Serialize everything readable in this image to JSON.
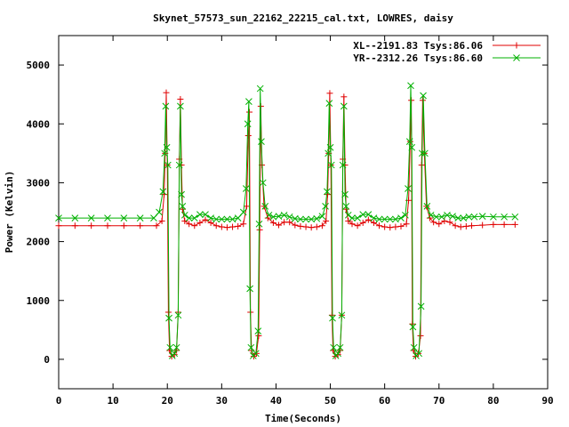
{
  "chart_data": {
    "type": "line",
    "title": "Skynet_57573_sun_22162_22215_cal.txt, LOWRES, daisy",
    "xlabel": "Time(Seconds)",
    "ylabel": "Power (Kelvin)",
    "xlim": [
      0,
      90
    ],
    "ylim": [
      -500,
      5500
    ],
    "xticks": [
      "0",
      "10",
      "20",
      "30",
      "40",
      "50",
      "60",
      "70",
      "80",
      "90"
    ],
    "yticks": [
      "0",
      "1000",
      "2000",
      "3000",
      "4000",
      "5000"
    ],
    "legend_position": "top-right",
    "grid": false,
    "series": [
      {
        "name": "XL--2191.83 Tsys:86.06",
        "color": "#e00000",
        "marker": "plus",
        "points": [
          [
            0,
            2270
          ],
          [
            3,
            2270
          ],
          [
            6,
            2270
          ],
          [
            9,
            2270
          ],
          [
            12,
            2270
          ],
          [
            15,
            2270
          ],
          [
            18,
            2270
          ],
          [
            19.0,
            2350
          ],
          [
            19.4,
            2800
          ],
          [
            19.6,
            3500
          ],
          [
            19.8,
            4530
          ],
          [
            20.0,
            3300
          ],
          [
            20.2,
            800
          ],
          [
            20.4,
            150
          ],
          [
            20.8,
            50
          ],
          [
            21.3,
            80
          ],
          [
            21.7,
            150
          ],
          [
            22.0,
            800
          ],
          [
            22.2,
            3400
          ],
          [
            22.4,
            4420
          ],
          [
            22.6,
            3300
          ],
          [
            22.8,
            2550
          ],
          [
            23.2,
            2350
          ],
          [
            24.0,
            2300
          ],
          [
            25.0,
            2270
          ],
          [
            26.0,
            2320
          ],
          [
            27.0,
            2370
          ],
          [
            28.0,
            2320
          ],
          [
            29.0,
            2270
          ],
          [
            30.0,
            2250
          ],
          [
            31.0,
            2240
          ],
          [
            32.0,
            2250
          ],
          [
            33.0,
            2260
          ],
          [
            34.0,
            2300
          ],
          [
            34.6,
            2600
          ],
          [
            34.9,
            3800
          ],
          [
            35.1,
            4200
          ],
          [
            35.3,
            800
          ],
          [
            35.5,
            150
          ],
          [
            35.9,
            50
          ],
          [
            36.4,
            100
          ],
          [
            36.8,
            400
          ],
          [
            37.0,
            2200
          ],
          [
            37.2,
            4300
          ],
          [
            37.4,
            3300
          ],
          [
            37.8,
            2600
          ],
          [
            38.5,
            2400
          ],
          [
            39.5,
            2320
          ],
          [
            40.5,
            2280
          ],
          [
            41.5,
            2330
          ],
          [
            42.5,
            2330
          ],
          [
            43.5,
            2280
          ],
          [
            44.5,
            2260
          ],
          [
            45.5,
            2250
          ],
          [
            46.5,
            2240
          ],
          [
            47.5,
            2250
          ],
          [
            48.5,
            2270
          ],
          [
            49.2,
            2350
          ],
          [
            49.5,
            2800
          ],
          [
            49.7,
            3500
          ],
          [
            49.9,
            4520
          ],
          [
            50.1,
            3300
          ],
          [
            50.3,
            750
          ],
          [
            50.5,
            150
          ],
          [
            50.9,
            50
          ],
          [
            51.4,
            80
          ],
          [
            51.8,
            150
          ],
          [
            52.1,
            750
          ],
          [
            52.3,
            3400
          ],
          [
            52.5,
            4460
          ],
          [
            52.7,
            3300
          ],
          [
            52.9,
            2550
          ],
          [
            53.3,
            2350
          ],
          [
            54.0,
            2300
          ],
          [
            55.0,
            2270
          ],
          [
            56.0,
            2320
          ],
          [
            57.0,
            2370
          ],
          [
            58.0,
            2320
          ],
          [
            59.0,
            2270
          ],
          [
            60.0,
            2250
          ],
          [
            61.0,
            2240
          ],
          [
            62.0,
            2250
          ],
          [
            63.0,
            2260
          ],
          [
            64.0,
            2300
          ],
          [
            64.4,
            2700
          ],
          [
            64.7,
            3700
          ],
          [
            64.9,
            4400
          ],
          [
            65.1,
            600
          ],
          [
            65.3,
            150
          ],
          [
            65.7,
            50
          ],
          [
            66.2,
            100
          ],
          [
            66.6,
            400
          ],
          [
            66.8,
            3300
          ],
          [
            67.0,
            4400
          ],
          [
            67.3,
            3500
          ],
          [
            67.7,
            2600
          ],
          [
            68.3,
            2400
          ],
          [
            69.0,
            2330
          ],
          [
            70.0,
            2300
          ],
          [
            71.0,
            2350
          ],
          [
            72.0,
            2330
          ],
          [
            73.0,
            2270
          ],
          [
            74.0,
            2250
          ],
          [
            75.0,
            2260
          ],
          [
            76.0,
            2270
          ],
          [
            78.0,
            2280
          ],
          [
            80.0,
            2290
          ],
          [
            82.0,
            2290
          ],
          [
            84.0,
            2290
          ]
        ]
      },
      {
        "name": "YR--2312.26 Tsys:86.60",
        "color": "#00b000",
        "marker": "cross",
        "points": [
          [
            0,
            2400
          ],
          [
            3,
            2400
          ],
          [
            6,
            2400
          ],
          [
            9,
            2400
          ],
          [
            12,
            2400
          ],
          [
            15,
            2400
          ],
          [
            17.5,
            2400
          ],
          [
            18.5,
            2500
          ],
          [
            19.2,
            2850
          ],
          [
            19.5,
            3500
          ],
          [
            19.7,
            4300
          ],
          [
            19.9,
            3600
          ],
          [
            20.1,
            3300
          ],
          [
            20.3,
            700
          ],
          [
            20.5,
            200
          ],
          [
            20.9,
            60
          ],
          [
            21.3,
            100
          ],
          [
            21.7,
            200
          ],
          [
            22.0,
            750
          ],
          [
            22.2,
            3300
          ],
          [
            22.4,
            4300
          ],
          [
            22.6,
            2800
          ],
          [
            22.8,
            2600
          ],
          [
            23.2,
            2450
          ],
          [
            24.0,
            2400
          ],
          [
            25.0,
            2400
          ],
          [
            26.0,
            2460
          ],
          [
            27.0,
            2460
          ],
          [
            28.0,
            2400
          ],
          [
            29.0,
            2380
          ],
          [
            30.0,
            2380
          ],
          [
            31.0,
            2380
          ],
          [
            32.0,
            2380
          ],
          [
            33.0,
            2400
          ],
          [
            34.0,
            2500
          ],
          [
            34.5,
            2900
          ],
          [
            34.8,
            4000
          ],
          [
            35.0,
            4380
          ],
          [
            35.2,
            1200
          ],
          [
            35.4,
            200
          ],
          [
            35.8,
            60
          ],
          [
            36.3,
            100
          ],
          [
            36.7,
            480
          ],
          [
            36.9,
            2300
          ],
          [
            37.1,
            4600
          ],
          [
            37.3,
            3700
          ],
          [
            37.6,
            3000
          ],
          [
            38.0,
            2600
          ],
          [
            38.7,
            2450
          ],
          [
            39.5,
            2420
          ],
          [
            40.5,
            2430
          ],
          [
            41.5,
            2450
          ],
          [
            42.5,
            2420
          ],
          [
            43.5,
            2390
          ],
          [
            44.5,
            2380
          ],
          [
            45.5,
            2380
          ],
          [
            46.5,
            2380
          ],
          [
            47.5,
            2390
          ],
          [
            48.5,
            2430
          ],
          [
            49.1,
            2600
          ],
          [
            49.4,
            2850
          ],
          [
            49.6,
            3500
          ],
          [
            49.8,
            4350
          ],
          [
            50.0,
            3600
          ],
          [
            50.2,
            3300
          ],
          [
            50.4,
            700
          ],
          [
            50.6,
            200
          ],
          [
            51.0,
            60
          ],
          [
            51.4,
            100
          ],
          [
            51.8,
            200
          ],
          [
            52.1,
            750
          ],
          [
            52.3,
            3300
          ],
          [
            52.5,
            4300
          ],
          [
            52.7,
            2800
          ],
          [
            52.9,
            2600
          ],
          [
            53.3,
            2450
          ],
          [
            54.0,
            2400
          ],
          [
            55.0,
            2400
          ],
          [
            56.0,
            2460
          ],
          [
            57.0,
            2460
          ],
          [
            58.0,
            2400
          ],
          [
            59.0,
            2380
          ],
          [
            60.0,
            2380
          ],
          [
            61.0,
            2380
          ],
          [
            62.0,
            2380
          ],
          [
            63.0,
            2400
          ],
          [
            63.8,
            2450
          ],
          [
            64.3,
            2900
          ],
          [
            64.6,
            3700
          ],
          [
            64.8,
            4650
          ],
          [
            65.0,
            3600
          ],
          [
            65.2,
            550
          ],
          [
            65.4,
            200
          ],
          [
            65.8,
            60
          ],
          [
            66.3,
            100
          ],
          [
            66.7,
            900
          ],
          [
            66.9,
            3500
          ],
          [
            67.1,
            4480
          ],
          [
            67.4,
            3500
          ],
          [
            67.8,
            2600
          ],
          [
            68.5,
            2450
          ],
          [
            69.5,
            2420
          ],
          [
            70.5,
            2420
          ],
          [
            71.5,
            2450
          ],
          [
            72.5,
            2430
          ],
          [
            73.5,
            2400
          ],
          [
            74.5,
            2400
          ],
          [
            75.5,
            2420
          ],
          [
            76.5,
            2420
          ],
          [
            78.0,
            2430
          ],
          [
            80.0,
            2420
          ],
          [
            82.0,
            2420
          ],
          [
            84.0,
            2420
          ]
        ]
      }
    ]
  }
}
